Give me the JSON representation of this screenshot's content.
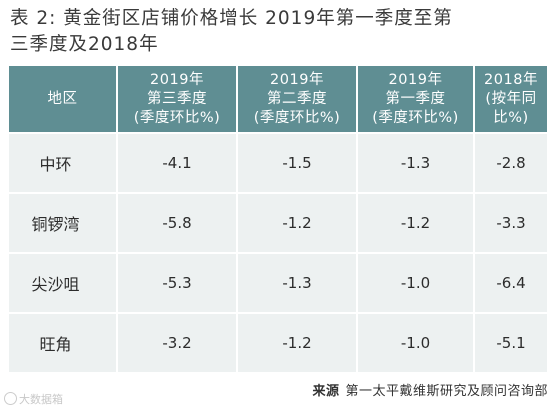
{
  "title": {
    "line1": "表 2: 黄金街区店铺价格增长 2019年第一季度至第",
    "line2": "三季度及2018年"
  },
  "table": {
    "headers": [
      {
        "lines": [
          "地区"
        ]
      },
      {
        "lines": [
          "2019年",
          "第三季度",
          "(季度环比%)"
        ]
      },
      {
        "lines": [
          "2019年",
          "第二季度",
          "(季度环比%)"
        ]
      },
      {
        "lines": [
          "2019年",
          "第一季度",
          "(季度环比%)"
        ]
      },
      {
        "lines": [
          "2018年",
          "(按年同",
          "比%)"
        ]
      }
    ],
    "rows": [
      {
        "region": "中环",
        "values": [
          "-4.1",
          "-1.5",
          "-1.3",
          "-2.8"
        ]
      },
      {
        "region": "铜锣湾",
        "values": [
          "-5.8",
          "-1.2",
          "-1.2",
          "-3.3"
        ]
      },
      {
        "region": "尖沙咀",
        "values": [
          "-5.3",
          "-1.3",
          "-1.0",
          "-6.4"
        ]
      },
      {
        "region": "旺角",
        "values": [
          "-3.2",
          "-1.2",
          "-1.0",
          "-5.1"
        ]
      }
    ]
  },
  "source": {
    "label": "来源",
    "text": "第一太平戴维斯研究及顾问咨询部"
  },
  "watermark": {
    "text": "大数据箱"
  },
  "colors": {
    "header_bg": "#5f8e93",
    "cell_bg": "#edf1f1"
  }
}
